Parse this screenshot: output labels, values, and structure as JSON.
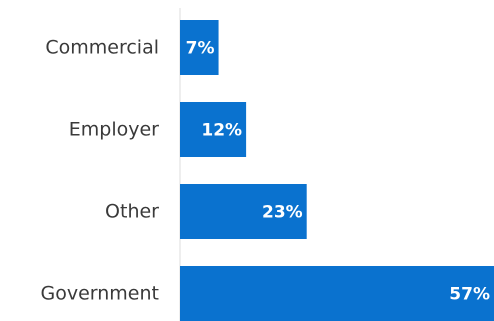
{
  "chart_data": {
    "type": "bar",
    "orientation": "horizontal",
    "categories": [
      "Commercial",
      "Employer",
      "Other",
      "Government"
    ],
    "values": [
      7,
      12,
      23,
      57
    ],
    "data_labels": [
      "7%",
      "12%",
      "23%",
      "57%"
    ],
    "unit": "%",
    "xlim": [
      0,
      57
    ],
    "grid": false,
    "legend": "none",
    "bar_color": "#0a72cf",
    "axis_color": "#dddddd",
    "label_color": "#3a3a3a",
    "value_label_color": "#ffffff"
  }
}
